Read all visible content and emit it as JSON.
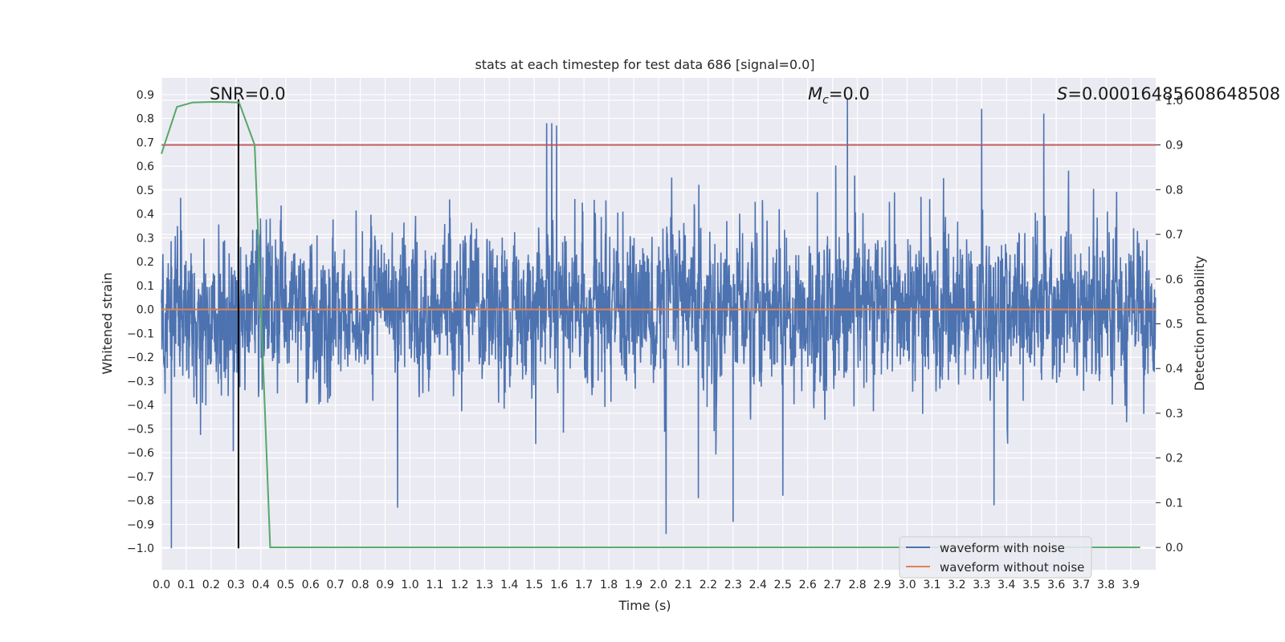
{
  "chart_data": {
    "type": "line",
    "title": "stats at each timestep for test data 686 [signal=0.0]",
    "xlabel": "Time (s)",
    "ylabel": "Whitened strain",
    "y2label": "Detection probability",
    "xlim": [
      0.0,
      4.0
    ],
    "ylim": [
      -1.09,
      0.97
    ],
    "y2lim": [
      -0.05,
      1.05
    ],
    "x_ticks": [
      "0.0",
      "0.1",
      "0.2",
      "0.3",
      "0.4",
      "0.5",
      "0.6",
      "0.7",
      "0.8",
      "0.9",
      "1.0",
      "1.1",
      "1.2",
      "1.3",
      "1.4",
      "1.5",
      "1.6",
      "1.7",
      "1.8",
      "1.9",
      "2.0",
      "2.1",
      "2.2",
      "2.3",
      "2.4",
      "2.5",
      "2.6",
      "2.7",
      "2.8",
      "2.9",
      "3.0",
      "3.1",
      "3.2",
      "3.3",
      "3.4",
      "3.5",
      "3.6",
      "3.7",
      "3.8",
      "3.9"
    ],
    "y_ticks": [
      "0.9",
      "0.8",
      "0.7",
      "0.6",
      "0.5",
      "0.4",
      "0.3",
      "0.2",
      "0.1",
      "0.0",
      "−0.1",
      "−0.2",
      "−0.3",
      "−0.4",
      "−0.5",
      "−0.6",
      "−0.7",
      "−0.8",
      "−0.9",
      "−1.0"
    ],
    "y2_ticks": [
      "1.0",
      "0.9",
      "0.8",
      "0.7",
      "0.6",
      "0.5",
      "0.4",
      "0.3",
      "0.2",
      "0.1",
      "0.0"
    ],
    "series": [
      {
        "name": "waveform with noise",
        "color": "#4c72b0",
        "kind": "noise",
        "n_samples": 4096,
        "range": [
          -1.0,
          0.88
        ],
        "typical_amplitude": 0.45,
        "peaks": [
          {
            "t": 0.04,
            "v": -1.0
          },
          {
            "t": 1.55,
            "v": 0.78
          },
          {
            "t": 1.57,
            "v": 0.78
          },
          {
            "t": 1.59,
            "v": 0.77
          },
          {
            "t": 2.03,
            "v": -0.94
          },
          {
            "t": 2.3,
            "v": -0.89
          },
          {
            "t": 2.76,
            "v": 0.88
          },
          {
            "t": 3.3,
            "v": 0.84
          },
          {
            "t": 3.55,
            "v": 0.82
          },
          {
            "t": 3.35,
            "v": -0.82
          },
          {
            "t": 0.95,
            "v": -0.83
          },
          {
            "t": 2.16,
            "v": -0.79
          },
          {
            "t": 2.5,
            "v": -0.78
          }
        ]
      },
      {
        "name": "waveform without noise",
        "color": "#dd8452",
        "kind": "line",
        "x": [
          0.0,
          4.0
        ],
        "values": [
          0.0,
          0.0
        ]
      },
      {
        "name": "detection probability",
        "color": "#55a868",
        "kind": "line",
        "axis": "right",
        "x": [
          0.0,
          0.0625,
          0.125,
          0.1875,
          0.25,
          0.3125,
          0.375,
          0.4375,
          0.5,
          1.0,
          2.0,
          3.0,
          3.9375
        ],
        "values": [
          0.88,
          0.985,
          0.995,
          0.996,
          0.996,
          0.995,
          0.9,
          0.0,
          0.0,
          0.0,
          0.0,
          0.0,
          0.0
        ]
      },
      {
        "name": "threshold",
        "color": "#c44e52",
        "kind": "hline",
        "axis": "right",
        "value": 0.9
      },
      {
        "name": "event marker",
        "color": "#000000",
        "kind": "vline",
        "x": 0.31,
        "y_from": -1.0,
        "y_to": 0.88
      }
    ],
    "annotations": {
      "snr": "SNR=0.0",
      "mc": "=0.0",
      "mc_symbol": "M",
      "mc_subscript": "c",
      "s": "=0.00016485608648508",
      "s_symbol": "S"
    },
    "legend": {
      "position": "lower-right",
      "entries": [
        {
          "label": "waveform with noise",
          "color": "#4c72b0"
        },
        {
          "label": "waveform without noise",
          "color": "#dd8452"
        }
      ]
    },
    "colors": {
      "plot_background": "#eaeaf2",
      "grid": "#ffffff"
    }
  }
}
